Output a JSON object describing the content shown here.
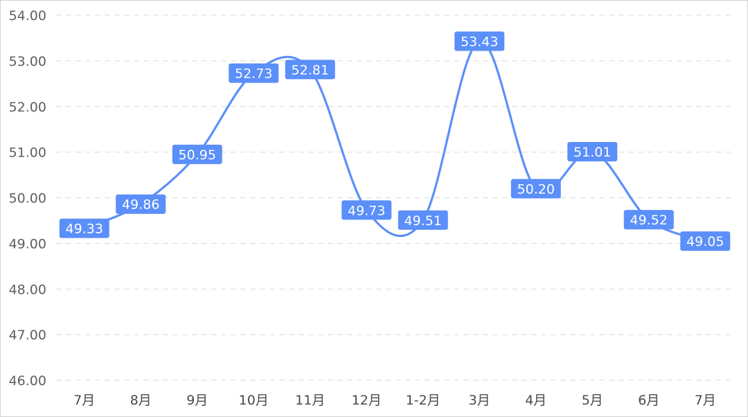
{
  "chart_data": {
    "type": "line",
    "title": "",
    "xlabel": "",
    "ylabel": "",
    "categories": [
      "7月",
      "8月",
      "9月",
      "10月",
      "11月",
      "12月",
      "1-2月",
      "3月",
      "4月",
      "5月",
      "6月",
      "7月"
    ],
    "series": [
      {
        "values": [
          49.33,
          49.86,
          50.95,
          52.73,
          52.81,
          49.73,
          49.51,
          53.43,
          50.2,
          51.01,
          49.52,
          49.05
        ],
        "labels": [
          "49.33",
          "49.86",
          "50.95",
          "52.73",
          "52.81",
          "49.73",
          "49.51",
          "53.43",
          "50.20",
          "51.01",
          "49.52",
          "49.05"
        ]
      }
    ],
    "ylim": [
      46,
      54
    ],
    "yticks": [
      "46.00",
      "47.00",
      "48.00",
      "49.00",
      "50.00",
      "51.00",
      "52.00",
      "53.00",
      "54.00"
    ],
    "grid": true,
    "line_style": "smooth",
    "data_labels": true,
    "colors": {
      "line": "#5b8ff9",
      "label_bg": "#5b8ff9",
      "label_text": "#ffffff",
      "grid": "#d9d9d9"
    }
  }
}
